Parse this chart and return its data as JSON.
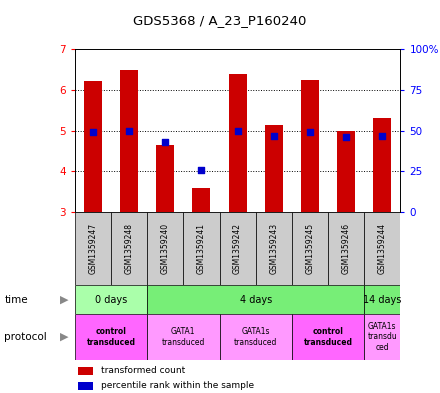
{
  "title": "GDS5368 / A_23_P160240",
  "samples": [
    "GSM1359247",
    "GSM1359248",
    "GSM1359240",
    "GSM1359241",
    "GSM1359242",
    "GSM1359243",
    "GSM1359245",
    "GSM1359246",
    "GSM1359244"
  ],
  "transformed_counts": [
    6.22,
    6.5,
    4.65,
    3.6,
    6.4,
    5.15,
    6.25,
    5.0,
    5.3
  ],
  "percentile_ranks": [
    49,
    50,
    43,
    26,
    50,
    47,
    49,
    46,
    47
  ],
  "ymin": 3.0,
  "ymax": 7.0,
  "yticks": [
    3,
    4,
    5,
    6,
    7
  ],
  "y2ticks": [
    0,
    25,
    50,
    75,
    100
  ],
  "y2labels": [
    "0",
    "25",
    "50",
    "75",
    "100%"
  ],
  "bar_color": "#cc0000",
  "dot_color": "#0000cc",
  "time_groups": [
    {
      "label": "0 days",
      "start": 0,
      "end": 2,
      "color": "#aaffaa"
    },
    {
      "label": "4 days",
      "start": 2,
      "end": 8,
      "color": "#77ee77"
    },
    {
      "label": "14 days",
      "start": 8,
      "end": 9,
      "color": "#77ee77"
    }
  ],
  "protocol_groups": [
    {
      "label": "control\ntransduced",
      "start": 0,
      "end": 2,
      "color": "#ff66ff",
      "bold": true
    },
    {
      "label": "GATA1\ntransduced",
      "start": 2,
      "end": 4,
      "color": "#ff99ff",
      "bold": false
    },
    {
      "label": "GATA1s\ntransduced",
      "start": 4,
      "end": 6,
      "color": "#ff99ff",
      "bold": false
    },
    {
      "label": "control\ntransduced",
      "start": 6,
      "end": 8,
      "color": "#ff66ff",
      "bold": true
    },
    {
      "label": "GATA1s\ntransdu\nced",
      "start": 8,
      "end": 9,
      "color": "#ff99ff",
      "bold": false
    }
  ],
  "legend_items": [
    {
      "color": "#cc0000",
      "label": "transformed count"
    },
    {
      "color": "#0000cc",
      "label": "percentile rank within the sample"
    }
  ]
}
